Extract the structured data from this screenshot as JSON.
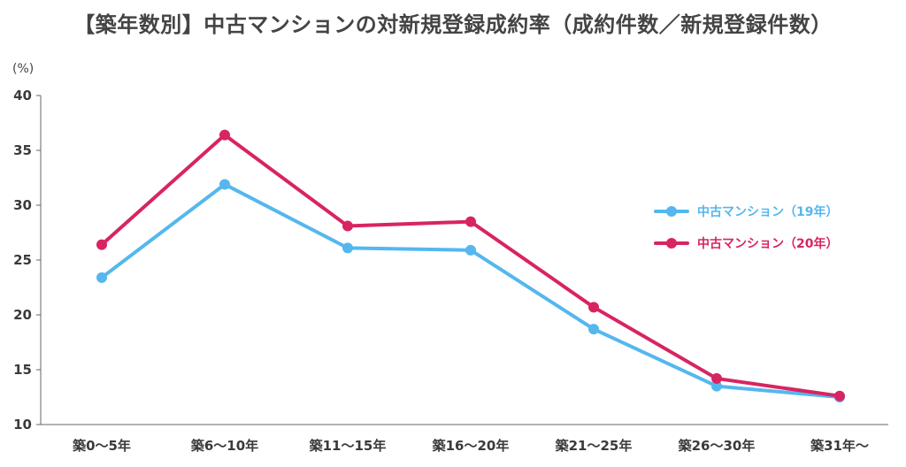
{
  "chart_data": {
    "type": "line",
    "title": "【築年数別】中古マンションの対新規登録成約率（成約件数／新規登録件数）",
    "unit_label": "(%)",
    "categories": [
      "築0～5年",
      "築6～10年",
      "築11～15年",
      "築16～20年",
      "築21～25年",
      "築26～30年",
      "築31年～"
    ],
    "yticks": [
      10,
      15,
      20,
      25,
      30,
      35,
      40
    ],
    "ylim": [
      10,
      40
    ],
    "series": [
      {
        "name": "中古マンション（19年）",
        "color": "#55b7ee",
        "values": [
          23.4,
          31.9,
          26.1,
          25.9,
          18.7,
          13.5,
          12.5
        ]
      },
      {
        "name": "中古マンション（20年）",
        "color": "#d82462",
        "values": [
          26.4,
          36.4,
          28.1,
          28.5,
          20.7,
          14.2,
          12.6
        ]
      }
    ],
    "legend_position": "right",
    "grid": false
  }
}
